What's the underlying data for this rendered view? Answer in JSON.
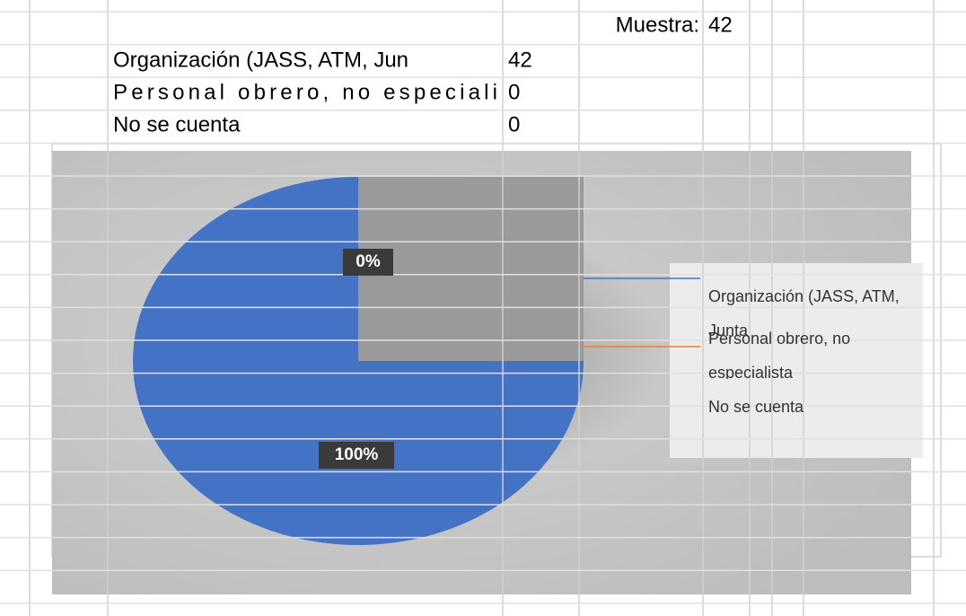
{
  "table": {
    "sample_label": "Muestra:",
    "sample_value": 42,
    "rows": [
      [
        "Organización (JASS, ATM, Jun",
        42
      ],
      [
        "Personal obrero, no especiali",
        0
      ],
      [
        "No se cuenta",
        0
      ]
    ]
  },
  "chart_data": {
    "type": "pie",
    "categories": [
      "Organización (JASS, ATM, Junta",
      "Personal obrero, no especialista",
      "No se cuenta"
    ],
    "values": [
      42,
      0,
      0
    ],
    "value_labels": [
      "100%",
      "0%",
      "0%"
    ],
    "colors": [
      "#4472c4",
      "#ed7d31",
      "#a5a5a5"
    ],
    "legend": "right"
  }
}
